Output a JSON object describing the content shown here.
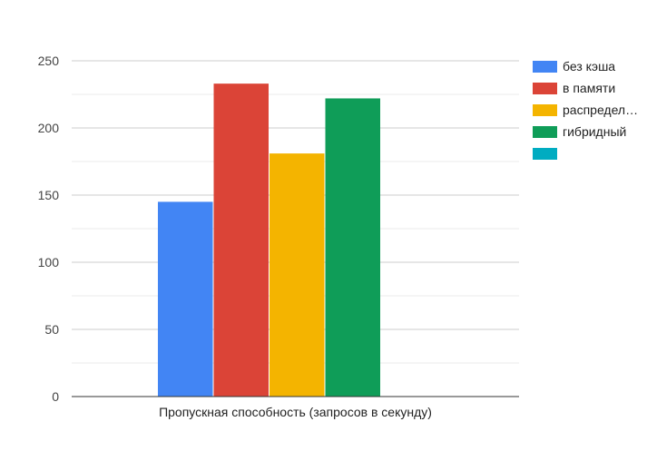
{
  "chart_data": {
    "type": "bar",
    "categories": [
      "Пропускная способность (запросов в секунду)"
    ],
    "series": [
      {
        "name": "без кэша",
        "values": [
          145
        ],
        "color": "#4285F4"
      },
      {
        "name": "в памяти",
        "values": [
          233
        ],
        "color": "#DB4437"
      },
      {
        "name": "распредел…",
        "values": [
          181
        ],
        "color": "#F4B400"
      },
      {
        "name": "гибридный",
        "values": [
          222
        ],
        "color": "#0F9D58"
      },
      {
        "name": "",
        "values": [
          0
        ],
        "color": "#00ACC1"
      }
    ],
    "title": "",
    "xlabel": "",
    "ylabel": "",
    "ylim": [
      0,
      250
    ],
    "yticks": [
      "0",
      "50",
      "100",
      "150",
      "200",
      "250"
    ],
    "grid": true,
    "legend_position": "right"
  }
}
